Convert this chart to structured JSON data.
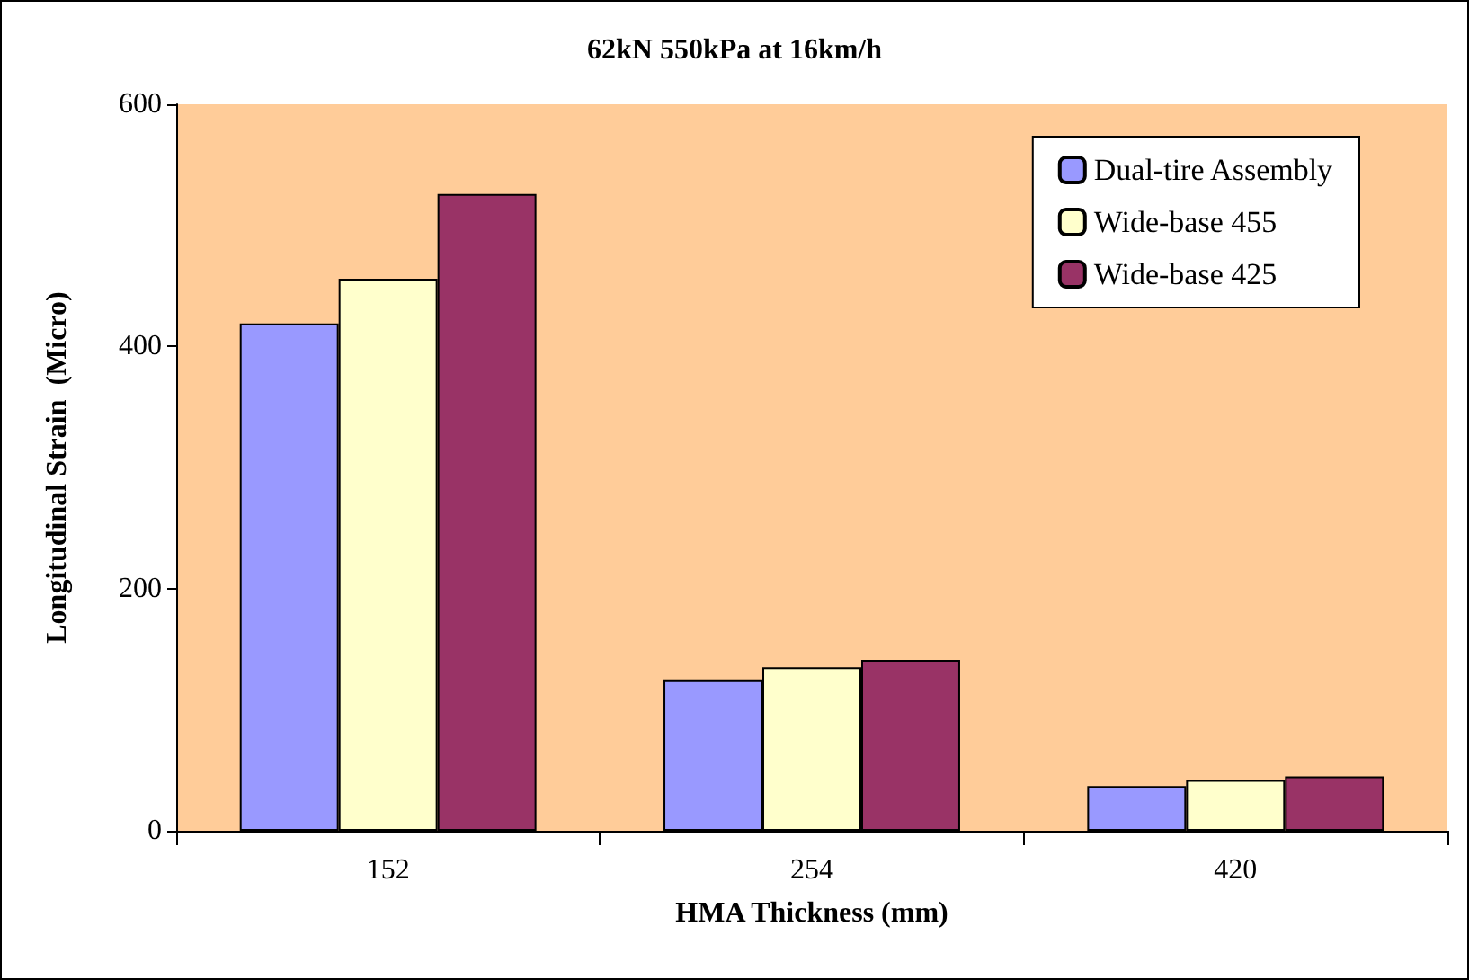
{
  "chart_data": {
    "type": "bar",
    "title": "62kN 550kPa at 16km/h",
    "xlabel": "HMA Thickness (mm)",
    "ylabel": "Longitudinal Strain  (Micro)",
    "categories": [
      "152",
      "254",
      "420"
    ],
    "series": [
      {
        "name": "Dual-tire Assembly",
        "color": "#9999ff",
        "values": [
          419,
          125,
          37
        ]
      },
      {
        "name": "Wide-base 455",
        "color": "#ffffcc",
        "values": [
          456,
          135,
          42
        ]
      },
      {
        "name": "Wide-base 425",
        "color": "#993366",
        "values": [
          526,
          141,
          45
        ]
      }
    ],
    "ylim": [
      0,
      600
    ],
    "yticks": [
      0,
      200,
      400,
      600
    ],
    "grid": false,
    "legend": "top right"
  }
}
